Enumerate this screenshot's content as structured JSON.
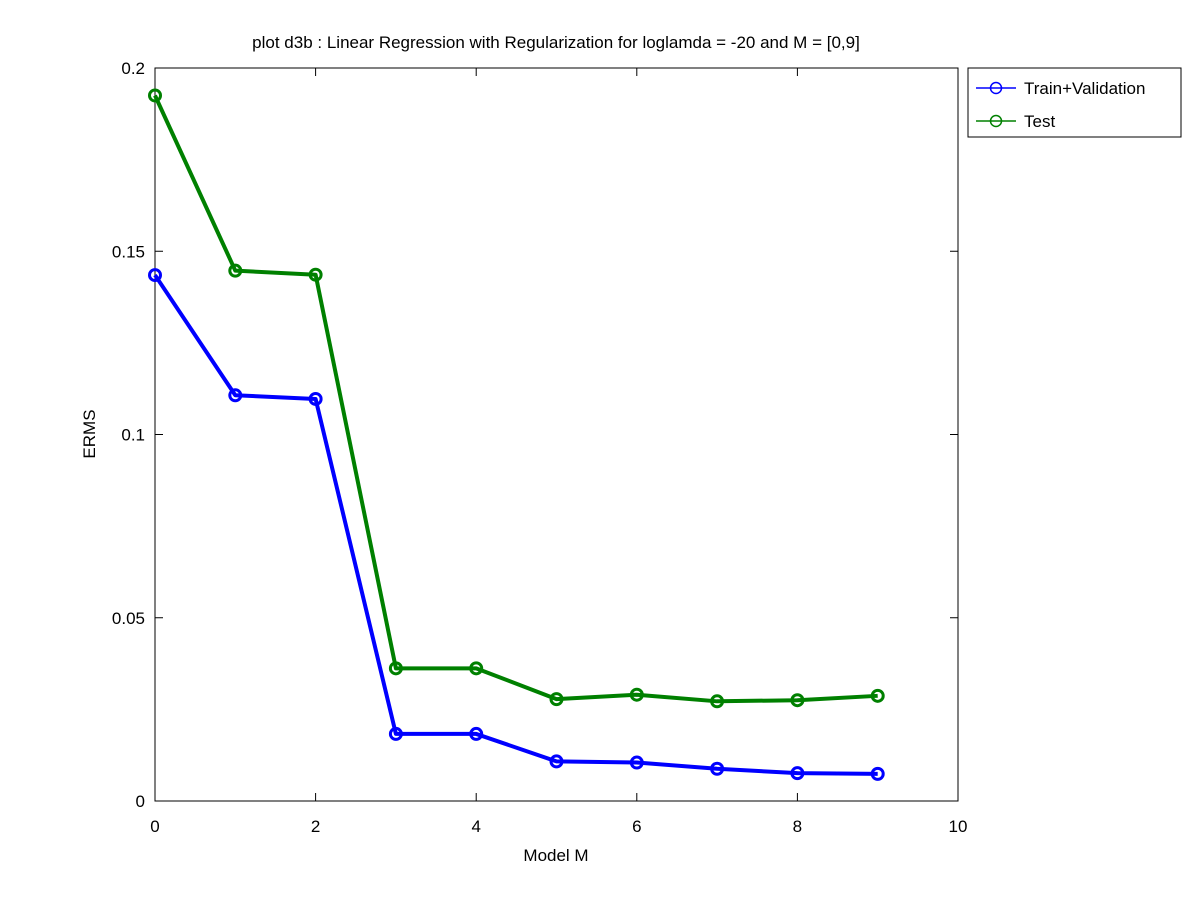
{
  "chart_data": {
    "type": "line",
    "title": "plot d3b : Linear Regression with Regularization for loglamda = -20 and M = [0,9]",
    "xlabel": "Model M",
    "ylabel": "ERMS",
    "xlim": [
      0,
      10
    ],
    "ylim": [
      0,
      0.2
    ],
    "xticks": [
      0,
      2,
      4,
      6,
      8,
      10
    ],
    "yticks": [
      0,
      0.05,
      0.1,
      0.15,
      0.2
    ],
    "xtick_labels": [
      "0",
      "2",
      "4",
      "6",
      "8",
      "10"
    ],
    "ytick_labels": [
      "0",
      "0.05",
      "0.1",
      "0.15",
      "0.2"
    ],
    "grid": false,
    "legend_position": "outside-top-right",
    "x": [
      0,
      1,
      2,
      3,
      4,
      5,
      6,
      7,
      8,
      9
    ],
    "series": [
      {
        "name": "Train+Validation",
        "color": "#0000ff",
        "marker": "circle",
        "values": [
          0.1435,
          0.1107,
          0.1097,
          0.0183,
          0.0183,
          0.0108,
          0.0105,
          0.0088,
          0.0076,
          0.0074
        ]
      },
      {
        "name": "Test",
        "color": "#008000",
        "marker": "circle",
        "values": [
          0.1925,
          0.1447,
          0.1436,
          0.0362,
          0.0362,
          0.0278,
          0.029,
          0.0272,
          0.0275,
          0.0287
        ]
      }
    ]
  }
}
